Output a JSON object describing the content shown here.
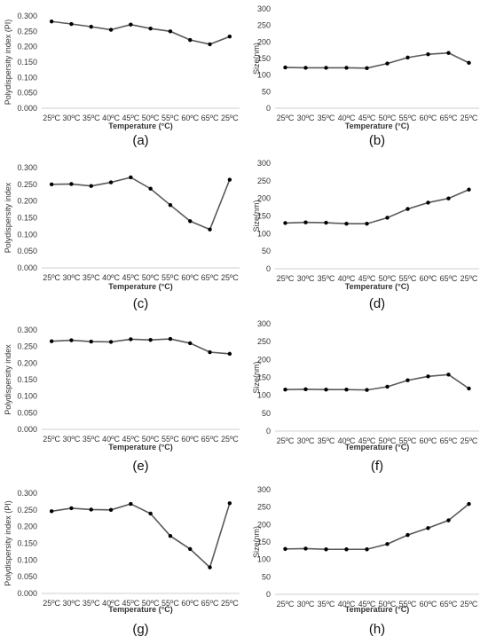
{
  "chart_data": [
    {
      "type": "line",
      "panel": "(a)",
      "ylabel": "Polydispersity index (PI)",
      "xlabel": "Temperature (°C)",
      "categories": [
        "25ºC",
        "30ºC",
        "35ºC",
        "40ºC",
        "45ºC",
        "50ºC",
        "55ºC",
        "60ºC",
        "65ºC",
        "25ºC"
      ],
      "values": [
        0.282,
        0.274,
        0.265,
        0.255,
        0.272,
        0.259,
        0.25,
        0.222,
        0.208,
        0.233
      ],
      "ylim": [
        0,
        0.3
      ],
      "yticks": [
        "0.000",
        "0.050",
        "0.100",
        "0.150",
        "0.200",
        "0.250",
        "0.300"
      ],
      "grid": false
    },
    {
      "type": "line",
      "panel": "(b)",
      "ylabel": "Size(nm)",
      "xlabel": "Temperature (°C)",
      "categories": [
        "25ºC",
        "30ºC",
        "35ºC",
        "40ºC",
        "45ºC",
        "50ºC",
        "55ºC",
        "60ºC",
        "65ºC",
        "25ºC"
      ],
      "values": [
        123,
        122,
        122,
        122,
        121,
        135,
        153,
        163,
        167,
        137
      ],
      "ylim": [
        0,
        300
      ],
      "yticks": [
        "0",
        "50",
        "100",
        "150",
        "200",
        "250",
        "300"
      ],
      "grid": false
    },
    {
      "type": "line",
      "panel": "(c)",
      "ylabel": "Polydispersity index",
      "xlabel": "Temperature (°C)",
      "categories": [
        "25ºC",
        "30ºC",
        "35ºC",
        "40ºC",
        "45ºC",
        "50ºC",
        "55ºC",
        "60ºC",
        "65ºC",
        "25ºC"
      ],
      "values": [
        0.25,
        0.251,
        0.245,
        0.256,
        0.271,
        0.237,
        0.188,
        0.14,
        0.115,
        0.264
      ],
      "ylim": [
        0,
        0.3
      ],
      "yticks": [
        "0.000",
        "0.050",
        "0.100",
        "0.150",
        "0.200",
        "0.250",
        "0.300"
      ],
      "grid": false
    },
    {
      "type": "line",
      "panel": "(d)",
      "ylabel": "Size(nm)",
      "xlabel": "Temperature (°C)",
      "categories": [
        "25ºC",
        "30ºC",
        "35ºC",
        "40ºC",
        "45ºC",
        "50ºC",
        "55ºC",
        "60ºC",
        "65ºC",
        "25ºC"
      ],
      "values": [
        130,
        132,
        131,
        128,
        128,
        145,
        170,
        188,
        200,
        225
      ],
      "ylim": [
        0,
        300
      ],
      "yticks": [
        "0",
        "50",
        "100",
        "150",
        "200",
        "250",
        "300"
      ],
      "grid": false
    },
    {
      "type": "line",
      "panel": "(e)",
      "ylabel": "Polydispersity index",
      "xlabel": "Temperature (°C)",
      "categories": [
        "25ºC",
        "30ºC",
        "35ºC",
        "40ºC",
        "45ºC",
        "50ºC",
        "55ºC",
        "60ºC",
        "65ºC",
        "25ºC"
      ],
      "values": [
        0.266,
        0.269,
        0.265,
        0.264,
        0.272,
        0.27,
        0.273,
        0.26,
        0.233,
        0.228
      ],
      "ylim": [
        0,
        0.3
      ],
      "yticks": [
        "0.000",
        "0.050",
        "0.100",
        "0.150",
        "0.200",
        "0.250",
        "0.300"
      ],
      "grid": false
    },
    {
      "type": "line",
      "panel": "(f)",
      "ylabel": "Size(nm)",
      "xlabel": "Temperature (°C)",
      "categories": [
        "25ºC",
        "30ºC",
        "35ºC",
        "40ºC",
        "45ºC",
        "50ºC",
        "55ºC",
        "60ºC",
        "65ºC",
        "25ºC"
      ],
      "values": [
        116,
        117,
        116,
        116,
        115,
        124,
        142,
        153,
        158,
        119
      ],
      "ylim": [
        0,
        300
      ],
      "yticks": [
        "0",
        "50",
        "100",
        "150",
        "200",
        "250",
        "300"
      ],
      "grid": false
    },
    {
      "type": "line",
      "panel": "(g)",
      "ylabel": "Polydispersity index (PI)",
      "xlabel": "Temperature (°C)",
      "categories": [
        "25ºC",
        "30ºC",
        "35ºC",
        "40ºC",
        "45ºC",
        "50ºC",
        "55ºC",
        "60ºC",
        "65ºC",
        "25ºC"
      ],
      "values": [
        0.246,
        0.255,
        0.251,
        0.25,
        0.268,
        0.239,
        0.172,
        0.133,
        0.078,
        0.27
      ],
      "ylim": [
        0,
        0.3
      ],
      "yticks": [
        "0.000",
        "0.050",
        "0.100",
        "0.150",
        "0.200",
        "0.250",
        "0.300"
      ],
      "grid": false
    },
    {
      "type": "line",
      "panel": "(h)",
      "ylabel": "Size(nm)",
      "xlabel": "Temperature (°C)",
      "categories": [
        "25ºC",
        "30ºC",
        "35ºC",
        "40ºC",
        "45ºC",
        "50ºC",
        "55ºC",
        "60ºC",
        "65ºC",
        "25ºC"
      ],
      "values": [
        130,
        131,
        129,
        129,
        129,
        144,
        170,
        190,
        212,
        259
      ],
      "ylim": [
        0,
        300
      ],
      "yticks": [
        "0",
        "50",
        "100",
        "150",
        "200",
        "250",
        "300"
      ],
      "grid": false
    }
  ],
  "colors": {
    "line": "#595959",
    "marker": "#000000",
    "baseline": "#bfbfbf",
    "text": "#333333"
  }
}
